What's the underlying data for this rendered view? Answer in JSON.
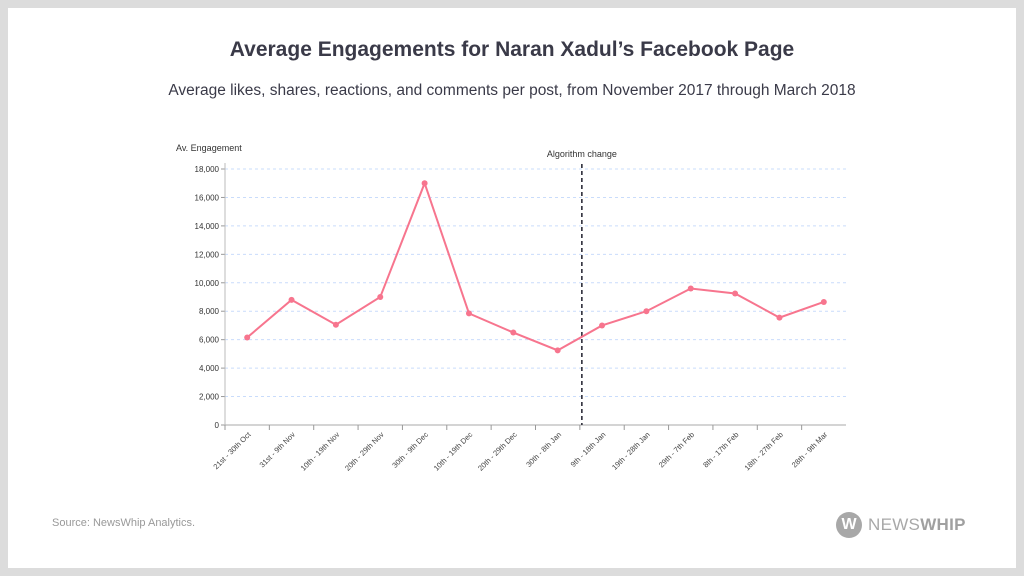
{
  "header": {
    "title": "Average Engagements for Naran Xadul’s Facebook Page",
    "subtitle": "Average likes, shares, reactions, and comments per post, from November 2017 through March 2018"
  },
  "footer": {
    "source": "Source: NewsWhip Analytics.",
    "logo_mark": "W",
    "logo_text_light": "NEWS",
    "logo_text_bold": "WHIP"
  },
  "chart_data": {
    "type": "line",
    "title": "",
    "ylabel": "Av. Engagement",
    "xlabel": "",
    "ylim": [
      0,
      18000
    ],
    "yticks": [
      "0",
      "2,000",
      "4,000",
      "6,000",
      "8,000",
      "10,000",
      "12,000",
      "14,000",
      "16,000",
      "18,000"
    ],
    "ytick_values": [
      0,
      2000,
      4000,
      6000,
      8000,
      10000,
      12000,
      14000,
      16000,
      18000
    ],
    "grid": "horizontal dashed",
    "categories": [
      "21st - 30th Oct",
      "31st - 9th Nov",
      "10th - 19th Nov",
      "20th - 29th Nov",
      "30th - 9th Dec",
      "10th - 19th Dec",
      "20th - 29th Dec",
      "30th - 8th Jan",
      "9th - 18th Jan",
      "19th - 28th Jan",
      "29th - 7th Feb",
      "8th - 17th Feb",
      "18th - 27th Feb",
      "28th - 9th Mar"
    ],
    "series": [
      {
        "values": [
          6150,
          8800,
          7050,
          9000,
          17000,
          7850,
          6500,
          5250,
          7000,
          8000,
          9600,
          9250,
          7550,
          8650
        ],
        "color": "#f7758e"
      }
    ],
    "annotations": [
      {
        "label": "Algorithm change",
        "position_between": [
          "30th - 8th Jan",
          "9th - 18th Jan"
        ],
        "style": "dashed vertical line",
        "color": "#2d2d3a"
      }
    ],
    "gridline_color": "#c9dcfb"
  }
}
